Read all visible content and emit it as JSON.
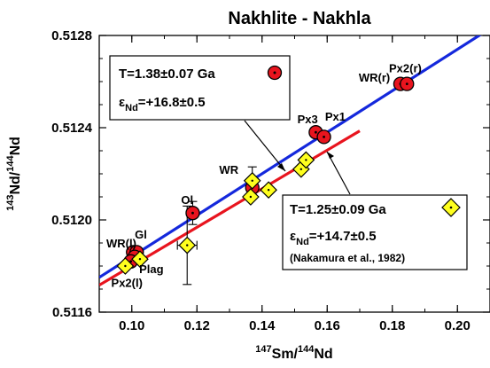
{
  "chart_data": {
    "type": "scatter",
    "title": "Nakhlite - Nakhla",
    "xlabel": {
      "pre": "",
      "sup": "147",
      "mid": "Sm/",
      "sup2": "144",
      "post": "Nd"
    },
    "ylabel": {
      "pre": "",
      "sup": "143",
      "mid": "Nd/",
      "sup2": "144",
      "post": "Nd"
    },
    "xlim": [
      0.09,
      0.21
    ],
    "ylim": [
      0.5116,
      0.5128
    ],
    "xticks": [
      {
        "v": 0.1,
        "label": "0.10"
      },
      {
        "v": 0.12,
        "label": "0.12"
      },
      {
        "v": 0.14,
        "label": "0.14"
      },
      {
        "v": 0.16,
        "label": "0.16"
      },
      {
        "v": 0.18,
        "label": "0.18"
      },
      {
        "v": 0.2,
        "label": "0.20"
      }
    ],
    "yticks": [
      {
        "v": 0.5116,
        "label": "0.5116"
      },
      {
        "v": 0.512,
        "label": "0.5120"
      },
      {
        "v": 0.5124,
        "label": "0.5124"
      },
      {
        "v": 0.5128,
        "label": "0.5128"
      }
    ],
    "grid": false,
    "series": [
      {
        "marker": "circle",
        "color": "#e8141e",
        "line_color": "#1428dc",
        "line_x": [
          0.09,
          0.21
        ],
        "points": [
          {
            "x": 0.1004,
            "y": 0.51186
          },
          {
            "x": 0.1015,
            "y": 0.51186
          },
          {
            "x": 0.1009,
            "y": 0.51184
          },
          {
            "x": 0.0997,
            "y": 0.51182
          },
          {
            "x": 0.1187,
            "y": 0.51203
          },
          {
            "x": 0.137,
            "y": 0.51214
          },
          {
            "x": 0.1565,
            "y": 0.51238
          },
          {
            "x": 0.159,
            "y": 0.51236
          },
          {
            "x": 0.1825,
            "y": 0.51259
          },
          {
            "x": 0.1845,
            "y": 0.51259
          }
        ],
        "error_bars": [
          {
            "x": 0.1187,
            "y": 0.51203,
            "yerr": 5e-05
          }
        ],
        "box": {
          "age": "T=1.38±0.07 Ga",
          "eps_sym": "ε",
          "eps_sub": "Nd",
          "eps_val": "=+16.8±0.5"
        }
      },
      {
        "marker": "diamond",
        "color": "#ffff1e",
        "line_color": "#e8141e",
        "line_x": [
          0.09,
          0.17
        ],
        "points": [
          {
            "x": 0.098,
            "y": 0.5118
          },
          {
            "x": 0.1025,
            "y": 0.51183
          },
          {
            "x": 0.117,
            "y": 0.51189
          },
          {
            "x": 0.1365,
            "y": 0.5121
          },
          {
            "x": 0.137,
            "y": 0.51217
          },
          {
            "x": 0.142,
            "y": 0.51213
          },
          {
            "x": 0.152,
            "y": 0.51222
          },
          {
            "x": 0.1535,
            "y": 0.51226
          }
        ],
        "error_bars": [
          {
            "x": 0.117,
            "y": 0.51189,
            "yerr": 0.00017,
            "xerr": 0.003
          },
          {
            "x": 0.137,
            "y": 0.51217,
            "yerr": 6e-05
          }
        ],
        "box": {
          "age": "T=1.25±0.09 Ga",
          "eps_sym": "ε",
          "eps_sub": "Nd",
          "eps_val": "=+14.7±0.5",
          "cite": "(Nakamura et al., 1982)"
        }
      }
    ],
    "point_labels": [
      {
        "text": "Px2(r)",
        "x": 0.184,
        "y": 0.51264
      },
      {
        "text": "WR(r)",
        "x": 0.1745,
        "y": 0.5126
      },
      {
        "text": "Px1",
        "x": 0.1625,
        "y": 0.51243
      },
      {
        "text": "Px3",
        "x": 0.154,
        "y": 0.51242
      },
      {
        "text": "WR",
        "x": 0.1298,
        "y": 0.5122
      },
      {
        "text": "Ol",
        "x": 0.117,
        "y": 0.51207
      },
      {
        "text": "Gl",
        "x": 0.1028,
        "y": 0.51192
      },
      {
        "text": "WR(l)",
        "x": 0.0968,
        "y": 0.51188
      },
      {
        "text": "Plag",
        "x": 0.106,
        "y": 0.51177
      },
      {
        "text": "Px2(l)",
        "x": 0.0985,
        "y": 0.51171
      }
    ]
  }
}
